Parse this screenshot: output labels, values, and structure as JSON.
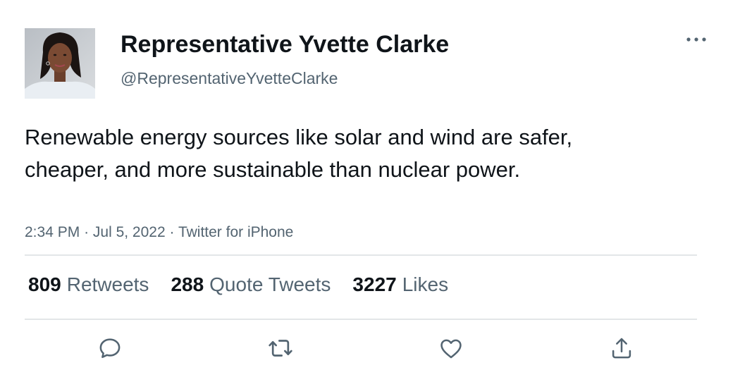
{
  "author": {
    "display_name": "Representative Yvette Clarke",
    "handle": "@RepresentativeYvetteClarke",
    "avatar_icon": "profile-photo"
  },
  "tweet": {
    "text": "Renewable energy sources like solar and wind are safer, cheaper, and more sustainable than nuclear power.",
    "time": "2:34 PM",
    "date": "Jul 5, 2022",
    "source": "Twitter for iPhone",
    "separator": "·"
  },
  "stats": {
    "retweets_count": "809",
    "retweets_label": "Retweets",
    "quote_tweets_count": "288",
    "quote_tweets_label": "Quote Tweets",
    "likes_count": "3227",
    "likes_label": "Likes"
  },
  "actions": {
    "reply_icon": "reply-icon",
    "retweet_icon": "retweet-icon",
    "like_icon": "heart-icon",
    "share_icon": "share-icon",
    "more_icon": "more-icon"
  },
  "colors": {
    "text_primary": "#0f1419",
    "text_secondary": "#536471",
    "icon": "#536471",
    "divider": "#e3e6e8"
  }
}
